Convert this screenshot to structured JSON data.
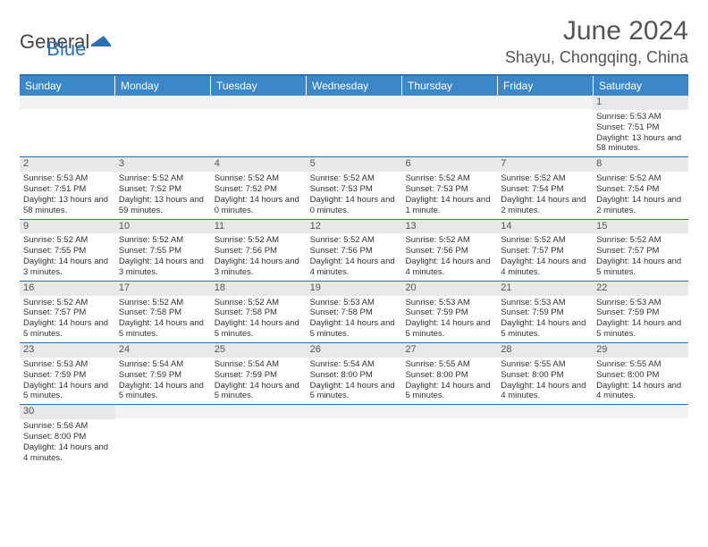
{
  "logo": {
    "word1": "General",
    "word2": "Blue"
  },
  "title": "June 2024",
  "location": "Shayu, Chongqing, China",
  "day_headers": [
    "Sunday",
    "Monday",
    "Tuesday",
    "Wednesday",
    "Thursday",
    "Friday",
    "Saturday"
  ],
  "colors": {
    "header_bg": "#3b87c8",
    "accent": "#2a70b8",
    "daynum_bg": "#e8e8e8",
    "text": "#333333"
  },
  "weeks": [
    [
      {
        "n": "",
        "sunrise": "",
        "sunset": "",
        "daylight": ""
      },
      {
        "n": "",
        "sunrise": "",
        "sunset": "",
        "daylight": ""
      },
      {
        "n": "",
        "sunrise": "",
        "sunset": "",
        "daylight": ""
      },
      {
        "n": "",
        "sunrise": "",
        "sunset": "",
        "daylight": ""
      },
      {
        "n": "",
        "sunrise": "",
        "sunset": "",
        "daylight": ""
      },
      {
        "n": "",
        "sunrise": "",
        "sunset": "",
        "daylight": ""
      },
      {
        "n": "1",
        "sunrise": "Sunrise: 5:53 AM",
        "sunset": "Sunset: 7:51 PM",
        "daylight": "Daylight: 13 hours and 58 minutes."
      }
    ],
    [
      {
        "n": "2",
        "sunrise": "Sunrise: 5:53 AM",
        "sunset": "Sunset: 7:51 PM",
        "daylight": "Daylight: 13 hours and 58 minutes."
      },
      {
        "n": "3",
        "sunrise": "Sunrise: 5:52 AM",
        "sunset": "Sunset: 7:52 PM",
        "daylight": "Daylight: 13 hours and 59 minutes."
      },
      {
        "n": "4",
        "sunrise": "Sunrise: 5:52 AM",
        "sunset": "Sunset: 7:52 PM",
        "daylight": "Daylight: 14 hours and 0 minutes."
      },
      {
        "n": "5",
        "sunrise": "Sunrise: 5:52 AM",
        "sunset": "Sunset: 7:53 PM",
        "daylight": "Daylight: 14 hours and 0 minutes."
      },
      {
        "n": "6",
        "sunrise": "Sunrise: 5:52 AM",
        "sunset": "Sunset: 7:53 PM",
        "daylight": "Daylight: 14 hours and 1 minute."
      },
      {
        "n": "7",
        "sunrise": "Sunrise: 5:52 AM",
        "sunset": "Sunset: 7:54 PM",
        "daylight": "Daylight: 14 hours and 2 minutes."
      },
      {
        "n": "8",
        "sunrise": "Sunrise: 5:52 AM",
        "sunset": "Sunset: 7:54 PM",
        "daylight": "Daylight: 14 hours and 2 minutes."
      }
    ],
    [
      {
        "n": "9",
        "sunrise": "Sunrise: 5:52 AM",
        "sunset": "Sunset: 7:55 PM",
        "daylight": "Daylight: 14 hours and 3 minutes."
      },
      {
        "n": "10",
        "sunrise": "Sunrise: 5:52 AM",
        "sunset": "Sunset: 7:55 PM",
        "daylight": "Daylight: 14 hours and 3 minutes."
      },
      {
        "n": "11",
        "sunrise": "Sunrise: 5:52 AM",
        "sunset": "Sunset: 7:56 PM",
        "daylight": "Daylight: 14 hours and 3 minutes."
      },
      {
        "n": "12",
        "sunrise": "Sunrise: 5:52 AM",
        "sunset": "Sunset: 7:56 PM",
        "daylight": "Daylight: 14 hours and 4 minutes."
      },
      {
        "n": "13",
        "sunrise": "Sunrise: 5:52 AM",
        "sunset": "Sunset: 7:56 PM",
        "daylight": "Daylight: 14 hours and 4 minutes."
      },
      {
        "n": "14",
        "sunrise": "Sunrise: 5:52 AM",
        "sunset": "Sunset: 7:57 PM",
        "daylight": "Daylight: 14 hours and 4 minutes."
      },
      {
        "n": "15",
        "sunrise": "Sunrise: 5:52 AM",
        "sunset": "Sunset: 7:57 PM",
        "daylight": "Daylight: 14 hours and 5 minutes."
      }
    ],
    [
      {
        "n": "16",
        "sunrise": "Sunrise: 5:52 AM",
        "sunset": "Sunset: 7:57 PM",
        "daylight": "Daylight: 14 hours and 5 minutes."
      },
      {
        "n": "17",
        "sunrise": "Sunrise: 5:52 AM",
        "sunset": "Sunset: 7:58 PM",
        "daylight": "Daylight: 14 hours and 5 minutes."
      },
      {
        "n": "18",
        "sunrise": "Sunrise: 5:52 AM",
        "sunset": "Sunset: 7:58 PM",
        "daylight": "Daylight: 14 hours and 5 minutes."
      },
      {
        "n": "19",
        "sunrise": "Sunrise: 5:53 AM",
        "sunset": "Sunset: 7:58 PM",
        "daylight": "Daylight: 14 hours and 5 minutes."
      },
      {
        "n": "20",
        "sunrise": "Sunrise: 5:53 AM",
        "sunset": "Sunset: 7:59 PM",
        "daylight": "Daylight: 14 hours and 5 minutes."
      },
      {
        "n": "21",
        "sunrise": "Sunrise: 5:53 AM",
        "sunset": "Sunset: 7:59 PM",
        "daylight": "Daylight: 14 hours and 5 minutes."
      },
      {
        "n": "22",
        "sunrise": "Sunrise: 5:53 AM",
        "sunset": "Sunset: 7:59 PM",
        "daylight": "Daylight: 14 hours and 5 minutes."
      }
    ],
    [
      {
        "n": "23",
        "sunrise": "Sunrise: 5:53 AM",
        "sunset": "Sunset: 7:59 PM",
        "daylight": "Daylight: 14 hours and 5 minutes."
      },
      {
        "n": "24",
        "sunrise": "Sunrise: 5:54 AM",
        "sunset": "Sunset: 7:59 PM",
        "daylight": "Daylight: 14 hours and 5 minutes."
      },
      {
        "n": "25",
        "sunrise": "Sunrise: 5:54 AM",
        "sunset": "Sunset: 7:59 PM",
        "daylight": "Daylight: 14 hours and 5 minutes."
      },
      {
        "n": "26",
        "sunrise": "Sunrise: 5:54 AM",
        "sunset": "Sunset: 8:00 PM",
        "daylight": "Daylight: 14 hours and 5 minutes."
      },
      {
        "n": "27",
        "sunrise": "Sunrise: 5:55 AM",
        "sunset": "Sunset: 8:00 PM",
        "daylight": "Daylight: 14 hours and 5 minutes."
      },
      {
        "n": "28",
        "sunrise": "Sunrise: 5:55 AM",
        "sunset": "Sunset: 8:00 PM",
        "daylight": "Daylight: 14 hours and 4 minutes."
      },
      {
        "n": "29",
        "sunrise": "Sunrise: 5:55 AM",
        "sunset": "Sunset: 8:00 PM",
        "daylight": "Daylight: 14 hours and 4 minutes."
      }
    ],
    [
      {
        "n": "30",
        "sunrise": "Sunrise: 5:56 AM",
        "sunset": "Sunset: 8:00 PM",
        "daylight": "Daylight: 14 hours and 4 minutes."
      },
      {
        "n": "",
        "sunrise": "",
        "sunset": "",
        "daylight": ""
      },
      {
        "n": "",
        "sunrise": "",
        "sunset": "",
        "daylight": ""
      },
      {
        "n": "",
        "sunrise": "",
        "sunset": "",
        "daylight": ""
      },
      {
        "n": "",
        "sunrise": "",
        "sunset": "",
        "daylight": ""
      },
      {
        "n": "",
        "sunrise": "",
        "sunset": "",
        "daylight": ""
      },
      {
        "n": "",
        "sunrise": "",
        "sunset": "",
        "daylight": ""
      }
    ]
  ]
}
